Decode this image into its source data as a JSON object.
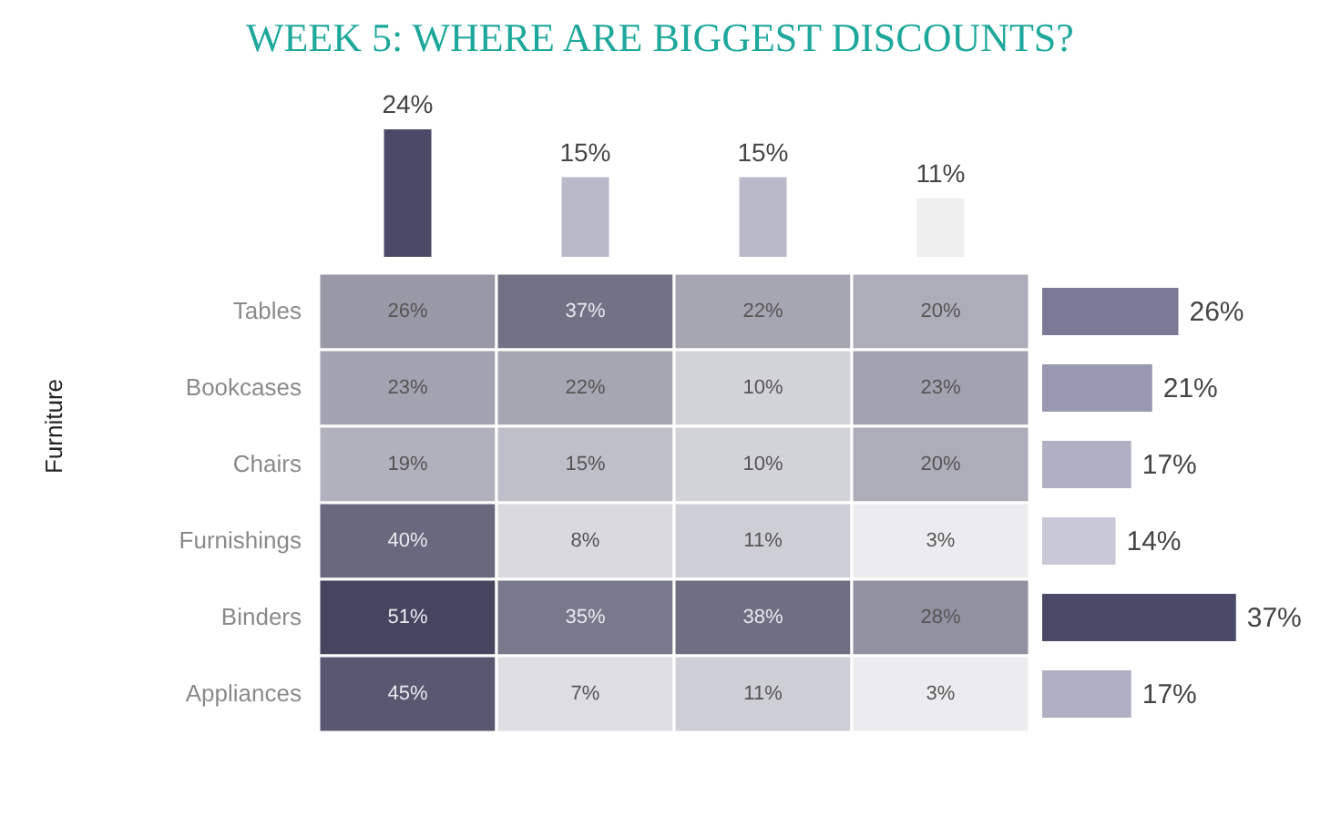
{
  "chart_data": [
    {
      "type": "bar",
      "title": "WEEK 5: WHERE ARE BIGGEST DISCOUNTS?",
      "categories": [
        null,
        null,
        null,
        null
      ],
      "values": [
        24,
        15,
        15,
        11
      ],
      "colors": [
        "#4a4a68",
        "#b9b9c9",
        "#b9b9c9",
        "#efeff0"
      ],
      "value_labels": [
        "24%",
        "15%",
        "15%",
        "11%"
      ]
    },
    {
      "type": "heatmap",
      "categories": [
        null,
        null,
        null,
        null
      ],
      "y_categories": [
        "Tables",
        "Bookcases",
        "Chairs",
        "Furnishings",
        "Binders",
        "Appliances"
      ],
      "cells": [
        [
          26,
          37,
          22,
          20
        ],
        [
          23,
          22,
          10,
          23
        ],
        [
          19,
          15,
          10,
          20
        ],
        [
          40,
          8,
          11,
          3
        ],
        [
          51,
          35,
          38,
          28
        ],
        [
          45,
          7,
          11,
          3
        ]
      ],
      "cell_labels": [
        [
          "26%",
          "37%",
          "22%",
          "20%"
        ],
        [
          "23%",
          "22%",
          "10%",
          "23%"
        ],
        [
          "19%",
          "15%",
          "10%",
          "20%"
        ],
        [
          "40%",
          "8%",
          "11%",
          "3%"
        ],
        [
          "51%",
          "35%",
          "38%",
          "28%"
        ],
        [
          "45%",
          "7%",
          "11%",
          "3%"
        ]
      ],
      "annotations": [
        "Furniture"
      ]
    },
    {
      "type": "bar",
      "orientation": "horizontal",
      "tick_labels": false,
      "values": [
        26,
        21,
        17,
        14,
        37,
        17
      ],
      "colors": [
        "#7a7a98",
        "#9898b0",
        "#b0b0c4",
        "#c8c8d6",
        "#4a4a68",
        "#b0b0c4"
      ],
      "value_labels": [
        "26%",
        "21%",
        "17%",
        "14%",
        "37%",
        "17%"
      ]
    }
  ]
}
